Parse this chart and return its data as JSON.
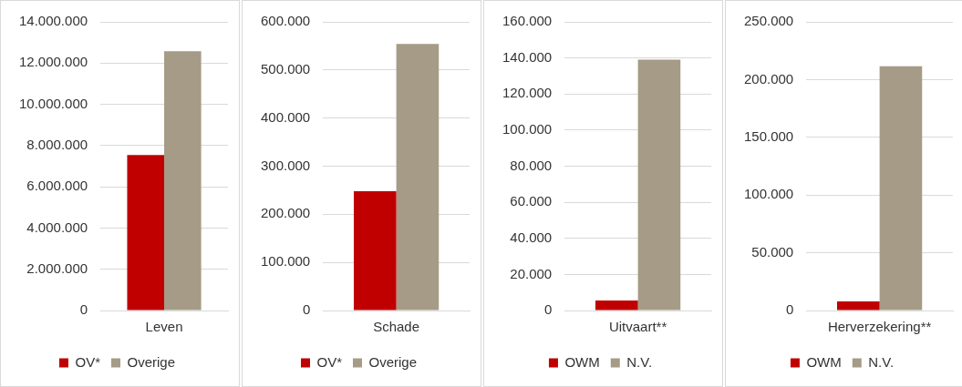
{
  "chart_data": [
    {
      "type": "bar",
      "categories": [
        "Leven"
      ],
      "series": [
        {
          "name": "OV*",
          "color": "#c00000",
          "values": [
            7540000
          ]
        },
        {
          "name": "Overige",
          "color": "#a59b86",
          "values": [
            12580000
          ]
        }
      ],
      "ylim": [
        0,
        14000000
      ],
      "yticks": [
        {
          "value": 0,
          "label": "0"
        },
        {
          "value": 2000000,
          "label": "2.000.000"
        },
        {
          "value": 4000000,
          "label": "4.000.000"
        },
        {
          "value": 6000000,
          "label": "6.000.000"
        },
        {
          "value": 8000000,
          "label": "8.000.000"
        },
        {
          "value": 10000000,
          "label": "10.000.000"
        },
        {
          "value": 12000000,
          "label": "12.000.000"
        },
        {
          "value": 14000000,
          "label": "14.000.000"
        }
      ],
      "grid": "y",
      "legend": "bottom"
    },
    {
      "type": "bar",
      "categories": [
        "Schade"
      ],
      "series": [
        {
          "name": "OV*",
          "color": "#c00000",
          "values": [
            248000
          ]
        },
        {
          "name": "Overige",
          "color": "#a59b86",
          "values": [
            554000
          ]
        }
      ],
      "ylim": [
        0,
        600000
      ],
      "yticks": [
        {
          "value": 0,
          "label": "0"
        },
        {
          "value": 100000,
          "label": "100.000"
        },
        {
          "value": 200000,
          "label": "200.000"
        },
        {
          "value": 300000,
          "label": "300.000"
        },
        {
          "value": 400000,
          "label": "400.000"
        },
        {
          "value": 500000,
          "label": "500.000"
        },
        {
          "value": 600000,
          "label": "600.000"
        }
      ],
      "grid": "y",
      "legend": "bottom"
    },
    {
      "type": "bar",
      "categories": [
        "Uitvaart**"
      ],
      "series": [
        {
          "name": "OWM",
          "color": "#c00000",
          "values": [
            5600
          ]
        },
        {
          "name": "N.V.",
          "color": "#a59b86",
          "values": [
            139000
          ]
        }
      ],
      "ylim": [
        0,
        160000
      ],
      "yticks": [
        {
          "value": 0,
          "label": "0"
        },
        {
          "value": 20000,
          "label": "20.000"
        },
        {
          "value": 40000,
          "label": "40.000"
        },
        {
          "value": 60000,
          "label": "60.000"
        },
        {
          "value": 80000,
          "label": "80.000"
        },
        {
          "value": 100000,
          "label": "100.000"
        },
        {
          "value": 120000,
          "label": "120.000"
        },
        {
          "value": 140000,
          "label": "140.000"
        },
        {
          "value": 160000,
          "label": "160.000"
        }
      ],
      "grid": "y",
      "legend": "bottom"
    },
    {
      "type": "bar",
      "categories": [
        "Herverzekering**"
      ],
      "series": [
        {
          "name": "OWM",
          "color": "#c00000",
          "values": [
            7900
          ]
        },
        {
          "name": "N.V.",
          "color": "#a59b86",
          "values": [
            211500
          ]
        }
      ],
      "ylim": [
        0,
        250000
      ],
      "yticks": [
        {
          "value": 0,
          "label": "0"
        },
        {
          "value": 50000,
          "label": "50.000"
        },
        {
          "value": 100000,
          "label": "100.000"
        },
        {
          "value": 150000,
          "label": "150.000"
        },
        {
          "value": 200000,
          "label": "200.000"
        },
        {
          "value": 250000,
          "label": "250.000"
        }
      ],
      "grid": "y",
      "legend": "bottom"
    }
  ]
}
